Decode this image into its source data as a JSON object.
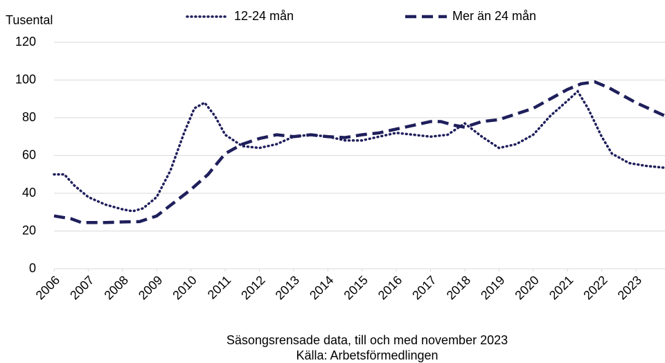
{
  "chart_data": {
    "type": "line",
    "y_label": "Tusental",
    "subtitle": "Säsongsrensade data, till och med november 2023",
    "source": "Källa: Arbetsförmedlingen",
    "xlim": [
      2006,
      2023.85
    ],
    "xticks": [
      2006,
      2007,
      2008,
      2009,
      2010,
      2011,
      2012,
      2013,
      2014,
      2015,
      2016,
      2017,
      2018,
      2019,
      2020,
      2021,
      2022,
      2023
    ],
    "ylim": [
      0,
      120
    ],
    "yticks": [
      0,
      20,
      40,
      60,
      80,
      100,
      120
    ],
    "grid": true,
    "legend": "top",
    "series": [
      {
        "name": "12-24 mån",
        "color": "#1f1f5c",
        "style": "dotted",
        "x": [
          2006.0,
          2006.3,
          2006.6,
          2007.0,
          2007.5,
          2008.0,
          2008.3,
          2008.6,
          2009.0,
          2009.4,
          2009.8,
          2010.1,
          2010.4,
          2010.7,
          2011.0,
          2011.5,
          2012.0,
          2012.5,
          2013.0,
          2013.5,
          2014.0,
          2014.5,
          2015.0,
          2015.5,
          2016.0,
          2016.5,
          2017.0,
          2017.5,
          2018.0,
          2018.5,
          2019.0,
          2019.5,
          2020.0,
          2020.5,
          2021.0,
          2021.3,
          2021.6,
          2022.0,
          2022.3,
          2022.8,
          2023.3,
          2023.85
        ],
        "values": [
          50,
          50,
          44,
          38,
          34,
          31.5,
          30.5,
          32,
          38,
          52,
          72,
          85,
          88,
          81,
          71,
          65,
          64,
          66,
          70,
          71,
          70,
          68,
          68,
          70,
          72,
          71,
          70,
          71,
          77,
          70,
          64,
          66,
          71,
          81,
          89,
          94,
          85,
          70,
          61,
          56,
          54.5,
          53.5
        ]
      },
      {
        "name": "Mer än 24 mån",
        "color": "#1f1f5c",
        "style": "dashed",
        "x": [
          2006.0,
          2006.5,
          2006.8,
          2007.5,
          2008.0,
          2008.5,
          2009.0,
          2009.5,
          2010.0,
          2010.5,
          2011.0,
          2011.5,
          2012.0,
          2012.5,
          2013.0,
          2013.5,
          2014.0,
          2014.5,
          2015.0,
          2015.5,
          2016.0,
          2016.5,
          2017.0,
          2017.3,
          2017.7,
          2018.0,
          2018.5,
          2019.0,
          2019.5,
          2020.0,
          2020.5,
          2021.0,
          2021.4,
          2021.8,
          2022.2,
          2022.6,
          2023.0,
          2023.85
        ],
        "values": [
          28,
          26.5,
          24.5,
          24.5,
          24.8,
          25,
          28,
          35,
          42,
          50,
          61,
          66,
          69,
          71,
          70,
          71,
          70,
          69.5,
          71,
          72,
          74,
          76,
          78,
          78,
          76,
          75,
          78,
          79,
          82,
          85,
          90,
          95,
          98,
          99,
          96,
          92,
          88,
          81
        ]
      }
    ]
  }
}
